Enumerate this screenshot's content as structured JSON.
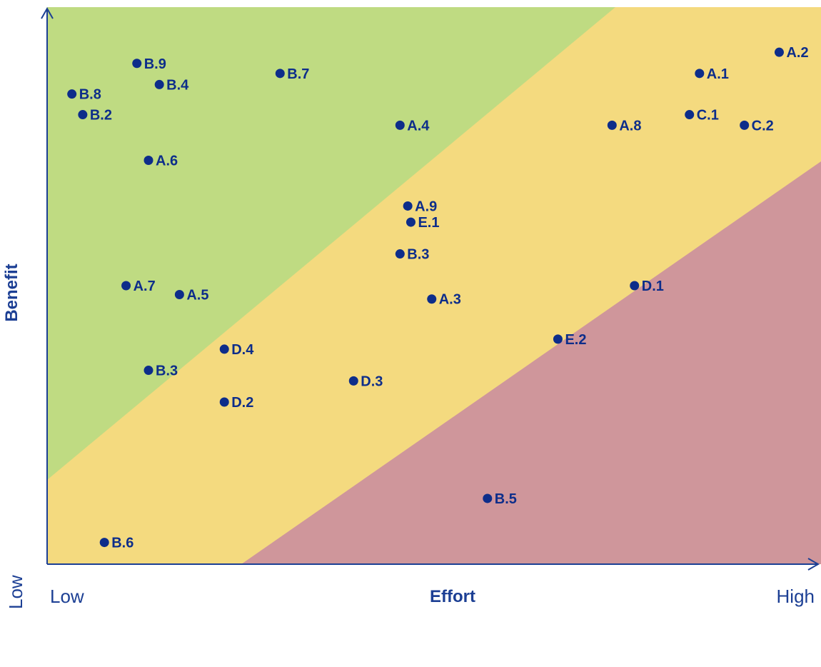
{
  "chart_data": {
    "type": "scatter",
    "xlabel": "Effort",
    "ylabel": "Benefit",
    "x_low_label": "Low",
    "x_high_label": "High",
    "y_low_label": "Low",
    "xlim": [
      0,
      100
    ],
    "ylim": [
      0,
      100
    ],
    "grid": false,
    "colors": {
      "green_zone": "#bfdb82",
      "yellow_zone": "#f4da7f",
      "red_zone": "#cf969b",
      "point": "#0d2d8a",
      "axis": "#1c3f94"
    },
    "points": [
      {
        "label": "A.2",
        "x": 94.6,
        "y": 91.9
      },
      {
        "label": "A.1",
        "x": 84.3,
        "y": 88.1
      },
      {
        "label": "B.7",
        "x": 30.1,
        "y": 88.1
      },
      {
        "label": "B.9",
        "x": 11.6,
        "y": 89.9
      },
      {
        "label": "B.4",
        "x": 14.5,
        "y": 86.1
      },
      {
        "label": "B.8",
        "x": 3.2,
        "y": 84.4
      },
      {
        "label": "B.2",
        "x": 4.6,
        "y": 80.7
      },
      {
        "label": "C.1",
        "x": 83.0,
        "y": 80.7
      },
      {
        "label": "A.4",
        "x": 45.6,
        "y": 78.8
      },
      {
        "label": "A.8",
        "x": 73.0,
        "y": 78.8
      },
      {
        "label": "C.2",
        "x": 90.1,
        "y": 78.8
      },
      {
        "label": "A.6",
        "x": 13.1,
        "y": 72.5
      },
      {
        "label": "A.9",
        "x": 46.6,
        "y": 64.3
      },
      {
        "label": "E.1",
        "x": 47.0,
        "y": 61.4
      },
      {
        "label": "B.3",
        "x": 45.6,
        "y": 55.7
      },
      {
        "label": "A.7",
        "x": 10.2,
        "y": 50.0
      },
      {
        "label": "D.1",
        "x": 75.9,
        "y": 50.0
      },
      {
        "label": "A.5",
        "x": 17.1,
        "y": 48.4
      },
      {
        "label": "A.3",
        "x": 49.7,
        "y": 47.6
      },
      {
        "label": "E.2",
        "x": 66.0,
        "y": 40.4
      },
      {
        "label": "D.4",
        "x": 22.9,
        "y": 38.6
      },
      {
        "label": "B.3",
        "x": 13.1,
        "y": 34.8
      },
      {
        "label": "D.3",
        "x": 39.6,
        "y": 32.9
      },
      {
        "label": "D.2",
        "x": 22.9,
        "y": 29.1
      },
      {
        "label": "B.5",
        "x": 56.9,
        "y": 11.8
      },
      {
        "label": "B.6",
        "x": 7.4,
        "y": 3.9
      }
    ]
  }
}
